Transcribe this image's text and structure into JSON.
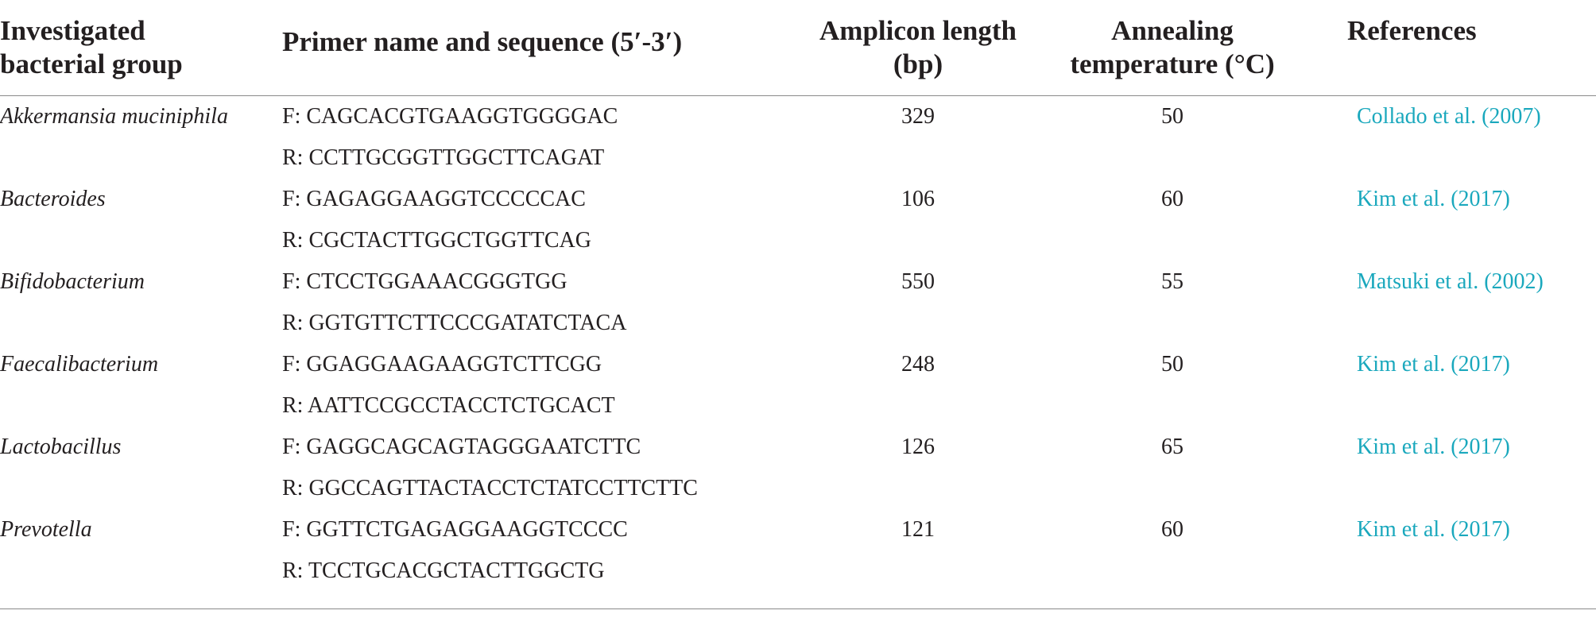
{
  "headers": {
    "group_line1": "Investigated",
    "group_line2": "bacterial group",
    "primer": "Primer name and sequence (5′-3′)",
    "amplicon_line1": "Amplicon length",
    "amplicon_line2": "(bp)",
    "annealing_line1": "Annealing",
    "annealing_line2": "temperature (°C)",
    "references": "References"
  },
  "rows": [
    {
      "group": "Akkermansia muciniphila",
      "forward": "F: CAGCACGTGAAGGTGGGGAC",
      "reverse": "R: CCTTGCGGTTGGCTTCAGAT",
      "amplicon": "329",
      "annealing": "50",
      "reference": "Collado et al. (2007)"
    },
    {
      "group": "Bacteroides",
      "forward": "F: GAGAGGAAGGTCCCCCAC",
      "reverse": "R: CGCTACTTGGCTGGTTCAG",
      "amplicon": "106",
      "annealing": "60",
      "reference": "Kim et al. (2017)"
    },
    {
      "group": "Bifidobacterium",
      "forward": "F: CTCCTGGAAACGGGTGG",
      "reverse": "R: GGTGTTCTTCCCGATATCTACA",
      "amplicon": "550",
      "annealing": "55",
      "reference": "Matsuki et al. (2002)"
    },
    {
      "group": "Faecalibacterium",
      "forward": "F: GGAGGAAGAAGGTCTTCGG",
      "reverse": "R: AATTCCGCCTACCTCTGCACT",
      "amplicon": "248",
      "annealing": "50",
      "reference": "Kim et al. (2017)"
    },
    {
      "group": "Lactobacillus",
      "forward": "F: GAGGCAGCAGTAGGGAATCTTC",
      "reverse": "R: GGCCAGTTACTACCTCTATCCTTCTTC",
      "amplicon": "126",
      "annealing": "65",
      "reference": "Kim et al. (2017)"
    },
    {
      "group": "Prevotella",
      "forward": "F: GGTTCTGAGAGGAAGGTCCCC",
      "reverse": "R: TCCTGCACGCTACTTGGCTG",
      "amplicon": "121",
      "annealing": "60",
      "reference": "Kim et al. (2017)"
    }
  ],
  "colors": {
    "text": "#231f20",
    "reference_link": "#1aa8bd",
    "rule": "#8a8a8a"
  }
}
